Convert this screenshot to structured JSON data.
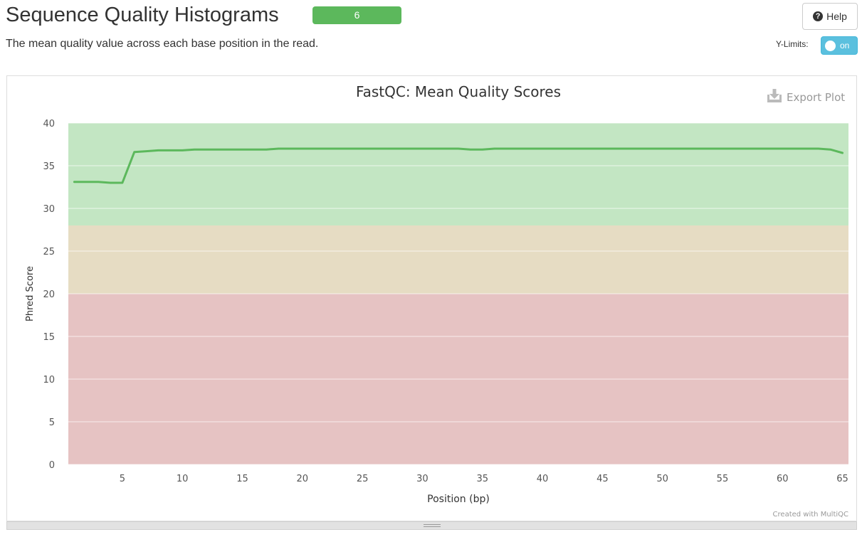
{
  "header": {
    "title": "Sequence Quality Histograms",
    "badge_count": "6",
    "badge_color": "#5cb85c",
    "help_label": "Help",
    "help_icon": "question-circle-icon"
  },
  "description": "The mean quality value across each base position in the read.",
  "ylimits": {
    "label": "Y-Limits:",
    "state": "on"
  },
  "plot": {
    "export_label": "Export Plot",
    "export_icon": "download-icon",
    "credit": "Created with MultiQC"
  },
  "chart_data": {
    "type": "line",
    "title": "FastQC: Mean Quality Scores",
    "xlabel": "Position (bp)",
    "ylabel": "Phred Score",
    "xlim": [
      0.5,
      65.5
    ],
    "ylim": [
      0,
      40
    ],
    "xticks": [
      5,
      10,
      15,
      20,
      25,
      30,
      35,
      40,
      45,
      50,
      55,
      60,
      65
    ],
    "yticks": [
      0,
      5,
      10,
      15,
      20,
      25,
      30,
      35,
      40
    ],
    "grid": true,
    "bands": [
      {
        "from": 28,
        "to": 40,
        "color": "#c3e6c3"
      },
      {
        "from": 20,
        "to": 28,
        "color": "#e6dcc3"
      },
      {
        "from": 0,
        "to": 20,
        "color": "#e6c3c3"
      }
    ],
    "series": [
      {
        "color": "#5cb85c",
        "x": [
          1,
          2,
          3,
          4,
          5,
          6,
          7,
          8,
          9,
          10,
          11,
          12,
          13,
          14,
          15,
          16,
          17,
          18,
          19,
          20,
          21,
          22,
          23,
          24,
          25,
          26,
          27,
          28,
          29,
          30,
          31,
          32,
          33,
          34,
          35,
          36,
          37,
          38,
          39,
          40,
          41,
          42,
          43,
          44,
          45,
          46,
          47,
          48,
          49,
          50,
          51,
          52,
          53,
          54,
          55,
          56,
          57,
          58,
          59,
          60,
          61,
          62,
          63,
          64,
          65
        ],
        "y": [
          33.1,
          33.1,
          33.1,
          33.0,
          33.0,
          36.6,
          36.7,
          36.8,
          36.8,
          36.8,
          36.9,
          36.9,
          36.9,
          36.9,
          36.9,
          36.9,
          36.9,
          37.0,
          37.0,
          37.0,
          37.0,
          37.0,
          37.0,
          37.0,
          37.0,
          37.0,
          37.0,
          37.0,
          37.0,
          37.0,
          37.0,
          37.0,
          37.0,
          36.9,
          36.9,
          37.0,
          37.0,
          37.0,
          37.0,
          37.0,
          37.0,
          37.0,
          37.0,
          37.0,
          37.0,
          37.0,
          37.0,
          37.0,
          37.0,
          37.0,
          37.0,
          37.0,
          37.0,
          37.0,
          37.0,
          37.0,
          37.0,
          37.0,
          37.0,
          37.0,
          37.0,
          37.0,
          37.0,
          36.9,
          36.5
        ]
      }
    ]
  }
}
